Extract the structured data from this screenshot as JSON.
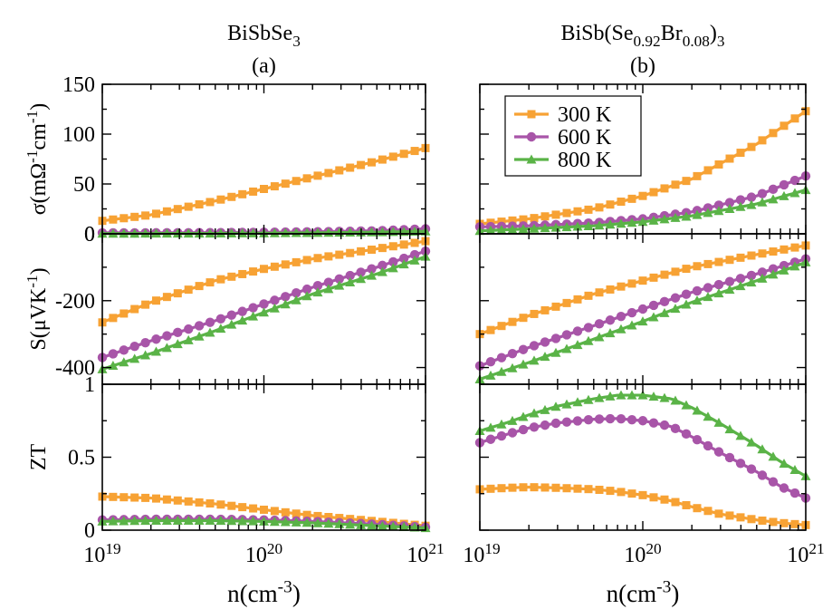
{
  "chart_data": [
    {
      "type": "line",
      "column_title": "BiSbSe",
      "column_title_sub": "3",
      "panel_label": "(a)",
      "xscale": "log",
      "xlim": [
        1e+19,
        1e+21
      ],
      "xticklabels": [
        {
          "base": "10",
          "exp": "19"
        },
        {
          "base": "10",
          "exp": "20"
        },
        {
          "base": "10",
          "exp": "21"
        }
      ],
      "xlabel": {
        "main": "n(cm",
        "sup": "-3",
        "close": ")"
      },
      "rows": [
        {
          "ylabel": "σ(mΩ-1cm-1)",
          "ylim": [
            0,
            150
          ],
          "yticks": [
            0,
            50,
            100,
            150
          ],
          "series": [
            {
              "name": "300 K",
              "x": [
                1e+19,
                2e+19,
                5e+19,
                1e+20,
                2e+20,
                5e+20,
                1e+21
              ],
              "values": [
                13,
                19,
                33,
                45,
                57,
                73,
                86
              ]
            },
            {
              "name": "600 K",
              "x": [
                1e+19,
                2e+19,
                5e+19,
                1e+20,
                2e+20,
                5e+20,
                1e+21
              ],
              "values": [
                1,
                1,
                1.2,
                1.5,
                2,
                3,
                5
              ]
            },
            {
              "name": "800 K",
              "x": [
                1e+19,
                2e+19,
                5e+19,
                1e+20,
                2e+20,
                5e+20,
                1e+21
              ],
              "values": [
                0.2,
                0.3,
                0.4,
                0.6,
                1,
                1.6,
                2.5
              ]
            }
          ]
        },
        {
          "ylabel": "S(μVK-1)",
          "ylim": [
            -450,
            0
          ],
          "yticks": [
            -400,
            -200,
            0
          ],
          "series": [
            {
              "name": "300 K",
              "x": [
                1e+19,
                2e+19,
                5e+19,
                1e+20,
                2e+20,
                5e+20,
                1e+21
              ],
              "values": [
                -265,
                -205,
                -140,
                -105,
                -75,
                -45,
                -22
              ]
            },
            {
              "name": "600 K",
              "x": [
                1e+19,
                2e+19,
                5e+19,
                1e+20,
                2e+20,
                5e+20,
                1e+21
              ],
              "values": [
                -370,
                -320,
                -260,
                -210,
                -160,
                -100,
                -52
              ]
            },
            {
              "name": "800 K",
              "x": [
                1e+19,
                2e+19,
                5e+19,
                1e+20,
                2e+20,
                5e+20,
                1e+21
              ],
              "values": [
                -405,
                -358,
                -290,
                -235,
                -180,
                -120,
                -68
              ]
            }
          ]
        },
        {
          "ylabel": "ZT",
          "ylim": [
            0,
            1
          ],
          "yticks": [
            0,
            0.5,
            1
          ],
          "series": [
            {
              "name": "300 K",
              "x": [
                1e+19,
                2e+19,
                5e+19,
                1e+20,
                2e+20,
                5e+20,
                1e+21
              ],
              "values": [
                0.23,
                0.22,
                0.18,
                0.14,
                0.1,
                0.06,
                0.03
              ]
            },
            {
              "name": "600 K",
              "x": [
                1e+19,
                2e+19,
                5e+19,
                1e+20,
                2e+20,
                5e+20,
                1e+21
              ],
              "values": [
                0.07,
                0.075,
                0.075,
                0.07,
                0.06,
                0.04,
                0.02
              ]
            },
            {
              "name": "800 K",
              "x": [
                1e+19,
                2e+19,
                5e+19,
                1e+20,
                2e+20,
                5e+20,
                1e+21
              ],
              "values": [
                0.06,
                0.065,
                0.065,
                0.06,
                0.05,
                0.03,
                0.015
              ]
            }
          ]
        }
      ]
    },
    {
      "type": "line",
      "column_title": "BiSb(Se",
      "column_title_sub": "0.92",
      "column_title_mid": "Br",
      "column_title_sub2": "0.08",
      "column_title_end": ")",
      "column_title_sub3": "3",
      "panel_label": "(b)",
      "xscale": "log",
      "xlim": [
        1e+19,
        1e+21
      ],
      "xticklabels": [
        {
          "base": "10",
          "exp": "19"
        },
        {
          "base": "10",
          "exp": "20"
        },
        {
          "base": "10",
          "exp": "21"
        }
      ],
      "xlabel": {
        "main": "n(cm",
        "sup": "-3",
        "close": ")"
      },
      "legend": {
        "placement": "top-left",
        "entries": [
          "300 K",
          "600 K",
          "800 K"
        ]
      },
      "rows": [
        {
          "ylim": [
            0,
            150
          ],
          "yticks": [
            0,
            50,
            100,
            150
          ],
          "series": [
            {
              "name": "300 K",
              "x": [
                1e+19,
                2e+19,
                5e+19,
                1e+20,
                2e+20,
                5e+20,
                1e+21
              ],
              "values": [
                10,
                15,
                25,
                38,
                55,
                90,
                123
              ]
            },
            {
              "name": "600 K",
              "x": [
                1e+19,
                2e+19,
                5e+19,
                1e+20,
                2e+20,
                5e+20,
                1e+21
              ],
              "values": [
                7,
                8,
                11,
                15,
                22,
                38,
                58
              ]
            },
            {
              "name": "800 K",
              "x": [
                1e+19,
                2e+19,
                5e+19,
                1e+20,
                2e+20,
                5e+20,
                1e+21
              ],
              "values": [
                3,
                5,
                8,
                12,
                18,
                30,
                44
              ]
            }
          ]
        },
        {
          "ylim": [
            -450,
            0
          ],
          "yticks": [
            -400,
            -200,
            0
          ],
          "series": [
            {
              "name": "300 K",
              "x": [
                1e+19,
                2e+19,
                5e+19,
                1e+20,
                2e+20,
                5e+20,
                1e+21
              ],
              "values": [
                -300,
                -245,
                -180,
                -140,
                -100,
                -62,
                -35
              ]
            },
            {
              "name": "600 K",
              "x": [
                1e+19,
                2e+19,
                5e+19,
                1e+20,
                2e+20,
                5e+20,
                1e+21
              ],
              "values": [
                -395,
                -340,
                -275,
                -225,
                -175,
                -120,
                -75
              ]
            },
            {
              "name": "800 K",
              "x": [
                1e+19,
                2e+19,
                5e+19,
                1e+20,
                2e+20,
                5e+20,
                1e+21
              ],
              "values": [
                -435,
                -385,
                -315,
                -262,
                -205,
                -140,
                -85
              ]
            }
          ]
        },
        {
          "ylim": [
            0,
            1
          ],
          "yticks": [
            0,
            0.5,
            1
          ],
          "series": [
            {
              "name": "300 K",
              "x": [
                1e+19,
                1.5e+19,
                2e+19,
                3e+19,
                5e+19,
                7e+19,
                1e+20,
                1.5e+20,
                2e+20,
                3e+20,
                5e+20,
                7e+20,
                1e+21
              ],
              "values": [
                0.28,
                0.29,
                0.295,
                0.29,
                0.28,
                0.265,
                0.24,
                0.2,
                0.16,
                0.11,
                0.07,
                0.05,
                0.035
              ]
            },
            {
              "name": "600 K",
              "x": [
                1e+19,
                1.5e+19,
                2e+19,
                3e+19,
                5e+19,
                7e+19,
                1e+20,
                1.5e+20,
                2e+20,
                3e+20,
                5e+20,
                7e+20,
                1e+21
              ],
              "values": [
                0.6,
                0.66,
                0.7,
                0.735,
                0.76,
                0.765,
                0.75,
                0.71,
                0.64,
                0.53,
                0.4,
                0.3,
                0.22
              ]
            },
            {
              "name": "800 K",
              "x": [
                1e+19,
                1.5e+19,
                2e+19,
                3e+19,
                5e+19,
                7e+19,
                1e+20,
                1.5e+20,
                2e+20,
                3e+20,
                5e+20,
                7e+20,
                1e+21
              ],
              "values": [
                0.68,
                0.74,
                0.79,
                0.85,
                0.9,
                0.925,
                0.925,
                0.9,
                0.84,
                0.73,
                0.58,
                0.47,
                0.37
              ]
            }
          ]
        }
      ]
    }
  ],
  "series_styles": [
    {
      "name": "300 K",
      "color": "#f7a234",
      "marker": "square"
    },
    {
      "name": "600 K",
      "color": "#a855a8",
      "marker": "circle"
    },
    {
      "name": "800 K",
      "color": "#5ab347",
      "marker": "triangle"
    }
  ]
}
